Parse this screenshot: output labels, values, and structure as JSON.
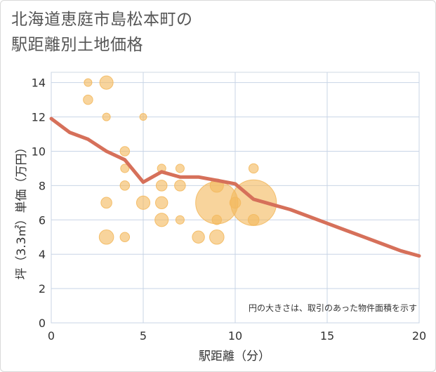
{
  "chart_data": {
    "type": "scatter",
    "title_lines": [
      "北海道恵庭市島松本町の",
      "駅距離別土地価格"
    ],
    "xlabel": "駅距離（分）",
    "ylabel": "坪（3.3㎡）単価（万円）",
    "xlim": [
      0,
      20
    ],
    "ylim": [
      0,
      14.6
    ],
    "xticks": [
      0,
      5,
      10,
      15,
      20
    ],
    "yticks": [
      0,
      2,
      4,
      6,
      8,
      10,
      12,
      14
    ],
    "grid": true,
    "note": "円の大きさは、取引のあった物件面積を示す",
    "bubble_color": "#f3b95f",
    "trend_color": "#d6705a",
    "bubbles": [
      {
        "x": 2,
        "y": 14,
        "size": 1
      },
      {
        "x": 3,
        "y": 14,
        "size": 3
      },
      {
        "x": 2,
        "y": 13,
        "size": 1.5
      },
      {
        "x": 3,
        "y": 12,
        "size": 1
      },
      {
        "x": 5,
        "y": 12,
        "size": 0.8
      },
      {
        "x": 4,
        "y": 10,
        "size": 1.5
      },
      {
        "x": 4,
        "y": 9,
        "size": 1.2
      },
      {
        "x": 6,
        "y": 9,
        "size": 1.2
      },
      {
        "x": 7,
        "y": 9,
        "size": 1.2
      },
      {
        "x": 11,
        "y": 9,
        "size": 1.5
      },
      {
        "x": 4,
        "y": 8,
        "size": 1.5
      },
      {
        "x": 6,
        "y": 8,
        "size": 2
      },
      {
        "x": 7,
        "y": 8,
        "size": 2
      },
      {
        "x": 9,
        "y": 8,
        "size": 3
      },
      {
        "x": 3,
        "y": 7,
        "size": 2
      },
      {
        "x": 5,
        "y": 7,
        "size": 3
      },
      {
        "x": 6,
        "y": 7,
        "size": 2.5
      },
      {
        "x": 9,
        "y": 7,
        "size": 30
      },
      {
        "x": 10,
        "y": 7,
        "size": 2
      },
      {
        "x": 11,
        "y": 7,
        "size": 35
      },
      {
        "x": 6,
        "y": 6,
        "size": 3
      },
      {
        "x": 7,
        "y": 6,
        "size": 1.2
      },
      {
        "x": 9,
        "y": 6,
        "size": 1.5
      },
      {
        "x": 11,
        "y": 6,
        "size": 2
      },
      {
        "x": 3,
        "y": 5,
        "size": 3.5
      },
      {
        "x": 4,
        "y": 5,
        "size": 1.5
      },
      {
        "x": 8,
        "y": 5,
        "size": 2.5
      },
      {
        "x": 9,
        "y": 5,
        "size": 3.5
      }
    ],
    "trend": {
      "x": [
        0,
        1,
        2,
        3,
        4,
        5,
        6,
        7,
        8,
        9,
        10,
        11,
        12,
        13,
        14,
        15,
        16,
        17,
        18,
        19,
        20
      ],
      "y": [
        11.9,
        11.1,
        10.7,
        10.0,
        9.5,
        8.2,
        8.8,
        8.5,
        8.5,
        8.3,
        8.1,
        7.2,
        6.9,
        6.6,
        6.2,
        5.8,
        5.4,
        5.0,
        4.6,
        4.2,
        3.9
      ]
    }
  }
}
